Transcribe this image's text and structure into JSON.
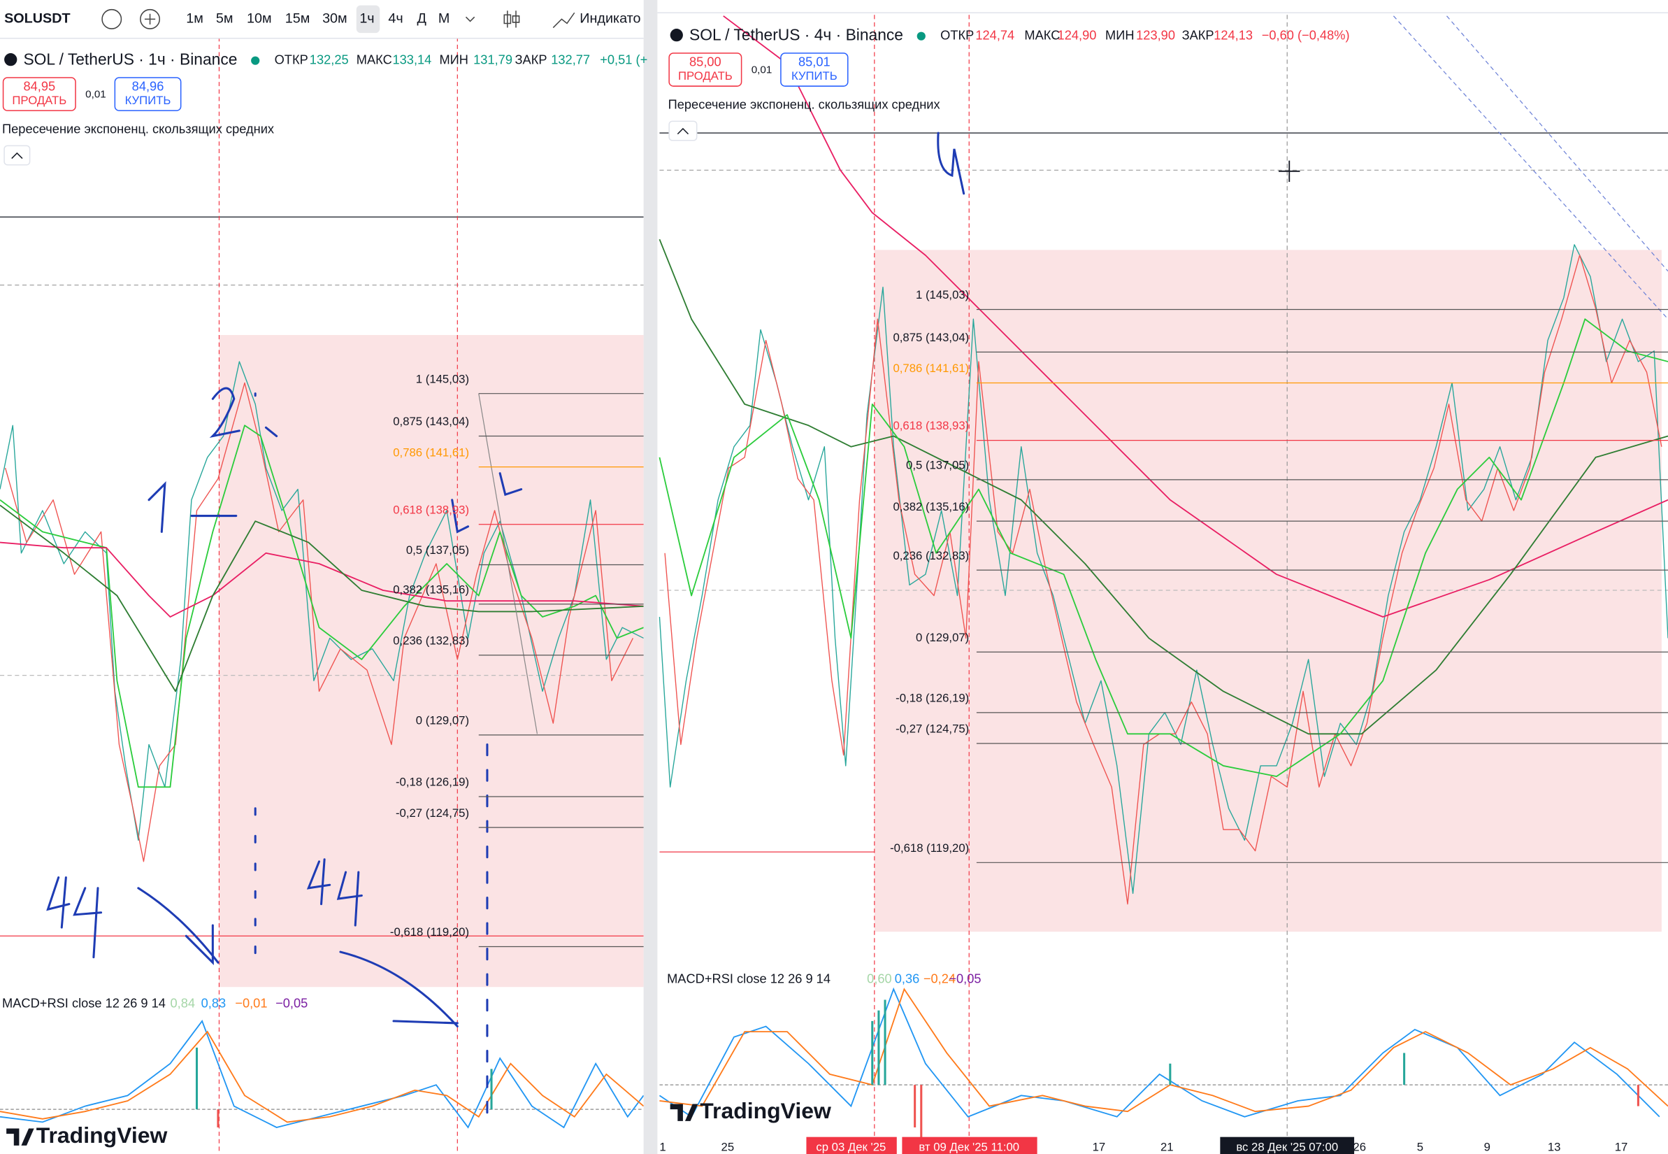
{
  "toolbar": {
    "symbol": "SOLUSDT",
    "timeframes": [
      "1м",
      "5м",
      "10м",
      "15м",
      "30м",
      "1ч",
      "4ч",
      "Д",
      "М"
    ],
    "indicators": "Индикато"
  },
  "panels": [
    {
      "title": "SOL / TetherUS · 1ч · Binance",
      "ohlc": [
        "ОТКР",
        "132,25",
        "МАКС",
        "133,14",
        "МИН",
        "131,79",
        "ЗАКР",
        "132,77"
      ],
      "change": "+0,51 (+",
      "sell": {
        "price": "84,95",
        "label": "ПРОДАТЬ"
      },
      "spread": "0,01",
      "buy": {
        "price": "84,96",
        "label": "КУПИТЬ"
      },
      "indicator": "Пересечение экспоненц. скользящих средних",
      "fib_levels": [
        "1 (145,03)",
        "0,875 (143,04)",
        "0,786 (141,61)",
        "0,618 (138,93)",
        "0,5 (137,05)",
        "0,382 (135,16)",
        "0,236 (132,83)",
        "0 (129,07)",
        "-0,18 (126,19)",
        "-0,27 (124,75)",
        "-0,618 (119,20)"
      ],
      "macd": {
        "label": "MACD+RSI close 12 26 9 14",
        "values": [
          "0,84",
          "0,83",
          "−0,01",
          "−0,05"
        ]
      },
      "logo": "TradingView"
    },
    {
      "title": "SOL / TetherUS · 4ч · Binance",
      "ohlc": [
        "ОТКР",
        "124,74",
        "МАКС",
        "124,90",
        "МИН",
        "123,90",
        "ЗАКР",
        "124,13"
      ],
      "change": "−0,60 (−0,48%)",
      "sell": {
        "price": "85,00",
        "label": "ПРОДАТЬ"
      },
      "spread": "0,01",
      "buy": {
        "price": "85,01",
        "label": "КУПИТЬ"
      },
      "indicator": "Пересечение экспоненц. скользящих средних",
      "fib_levels": [
        "1 (145,03)",
        "0,875 (143,04)",
        "0,786 (141,61)",
        "0,618 (138,93)",
        "0,5 (137,05)",
        "0,382 (135,16)",
        "0,236 (132,83)",
        "0 (129,07)",
        "-0,18 (126,19)",
        "-0,27 (124,75)",
        "-0,618 (119,20)"
      ],
      "macd": {
        "label": "MACD+RSI close 12 26 9 14",
        "values": [
          "0,60",
          "0,36",
          "−0,24",
          "−0,05"
        ]
      },
      "logo": "TradingView",
      "x_axis": [
        "1",
        "25",
        "ср 03 Дек '25",
        "вт 09 Дек '25  11:00",
        "17",
        "21",
        "вс 28 Дек '25  07:00",
        "26",
        "5",
        "9",
        "13",
        "17"
      ]
    }
  ]
}
